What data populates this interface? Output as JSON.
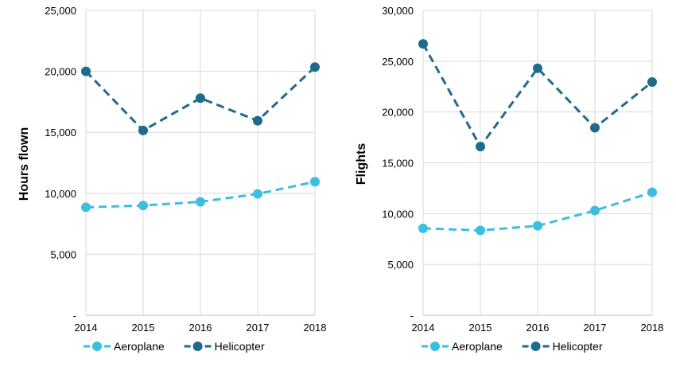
{
  "colors": {
    "aeroplane": "#3bbfe0",
    "helicopter": "#1e6b8c"
  },
  "chart_data": [
    {
      "type": "line",
      "title": "",
      "xlabel": "",
      "ylabel": "Hours flown",
      "categories": [
        "2014",
        "2015",
        "2016",
        "2017",
        "2018"
      ],
      "ylim": [
        0,
        25000
      ],
      "yticks": [
        "-",
        "5,000",
        "10,000",
        "15,000",
        "20,000",
        "25,000"
      ],
      "grid": true,
      "legend": "bottom",
      "series": [
        {
          "name": "Aeroplane",
          "values": [
            8850,
            9000,
            9300,
            9950,
            10950
          ]
        },
        {
          "name": "Helicopter",
          "values": [
            20000,
            15150,
            17800,
            15950,
            20350
          ]
        }
      ]
    },
    {
      "type": "line",
      "title": "",
      "xlabel": "",
      "ylabel": "Flights",
      "categories": [
        "2014",
        "2015",
        "2016",
        "2017",
        "2018"
      ],
      "ylim": [
        0,
        30000
      ],
      "yticks": [
        "-",
        "5,000",
        "10,000",
        "15,000",
        "20,000",
        "25,000",
        "30,000"
      ],
      "grid": true,
      "legend": "bottom",
      "series": [
        {
          "name": "Aeroplane",
          "values": [
            8550,
            8350,
            8800,
            10300,
            12100
          ]
        },
        {
          "name": "Helicopter",
          "values": [
            26700,
            16600,
            24300,
            18450,
            22950
          ]
        }
      ]
    }
  ]
}
